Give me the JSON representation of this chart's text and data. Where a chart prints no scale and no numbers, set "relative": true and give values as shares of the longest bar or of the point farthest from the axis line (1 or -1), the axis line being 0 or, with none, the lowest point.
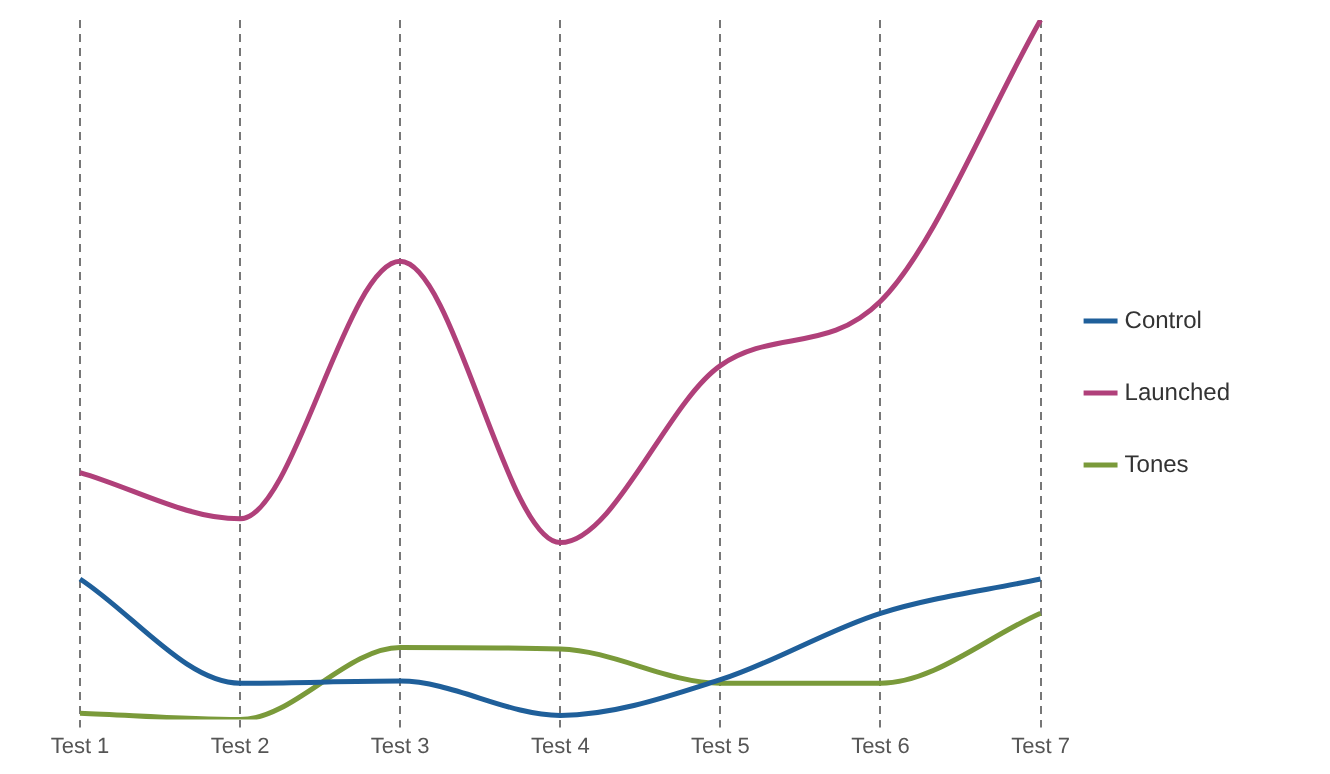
{
  "chart_data": {
    "type": "line",
    "relative": true,
    "categories": [
      "Test 1",
      "Test 2",
      "Test 3",
      "Test 4",
      "Test 5",
      "Test 6",
      "Test 7"
    ],
    "series": [
      {
        "name": "Control",
        "color": "#1f5f9a",
        "values": [
          0.201,
          0.052,
          0.055,
          0.006,
          0.057,
          0.152,
          0.201
        ]
      },
      {
        "name": "Launched",
        "color": "#b0407a",
        "values": [
          0.353,
          0.287,
          0.655,
          0.253,
          0.506,
          0.598,
          1
        ]
      },
      {
        "name": "Tones",
        "color": "#7a9a3a",
        "values": [
          0.009,
          0,
          0.103,
          0.101,
          0.052,
          0.052,
          0.152
        ]
      }
    ],
    "grid": "x",
    "legend": "right",
    "marker": "none",
    "line_style": "solid"
  }
}
